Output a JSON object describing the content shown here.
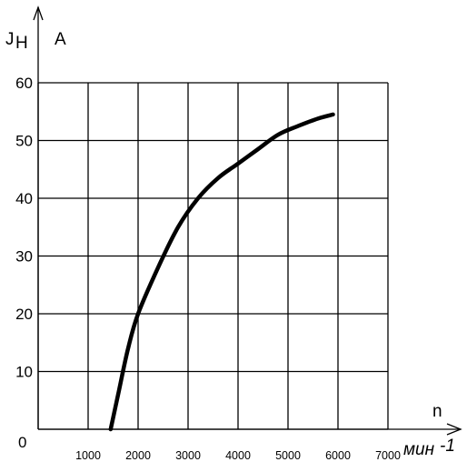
{
  "chart_data": {
    "type": "line",
    "x_ticks": [
      "1000",
      "2000",
      "3000",
      "4000",
      "5000",
      "6000",
      "7000"
    ],
    "y_ticks": [
      "10",
      "20",
      "30",
      "40",
      "50",
      "60"
    ],
    "origin_label": "0",
    "xlim": [
      0,
      7000
    ],
    "ylim": [
      0,
      60
    ],
    "grid": true,
    "y_axis": {
      "symbol_main": "J",
      "symbol_sub": "H",
      "unit": "A"
    },
    "x_axis": {
      "symbol": "n",
      "unit": "мин",
      "unit_exp": "-1"
    },
    "series": [
      {
        "x": [
          1450,
          1600,
          1800,
          2000,
          2400,
          2800,
          3200,
          3600,
          4000,
          4400,
          4800,
          5200,
          5600,
          5900
        ],
        "y": [
          0,
          6,
          14,
          20,
          28,
          35,
          40,
          43.5,
          46,
          48.5,
          51,
          52.5,
          53.8,
          54.5
        ]
      }
    ],
    "line_color": "#000000"
  }
}
